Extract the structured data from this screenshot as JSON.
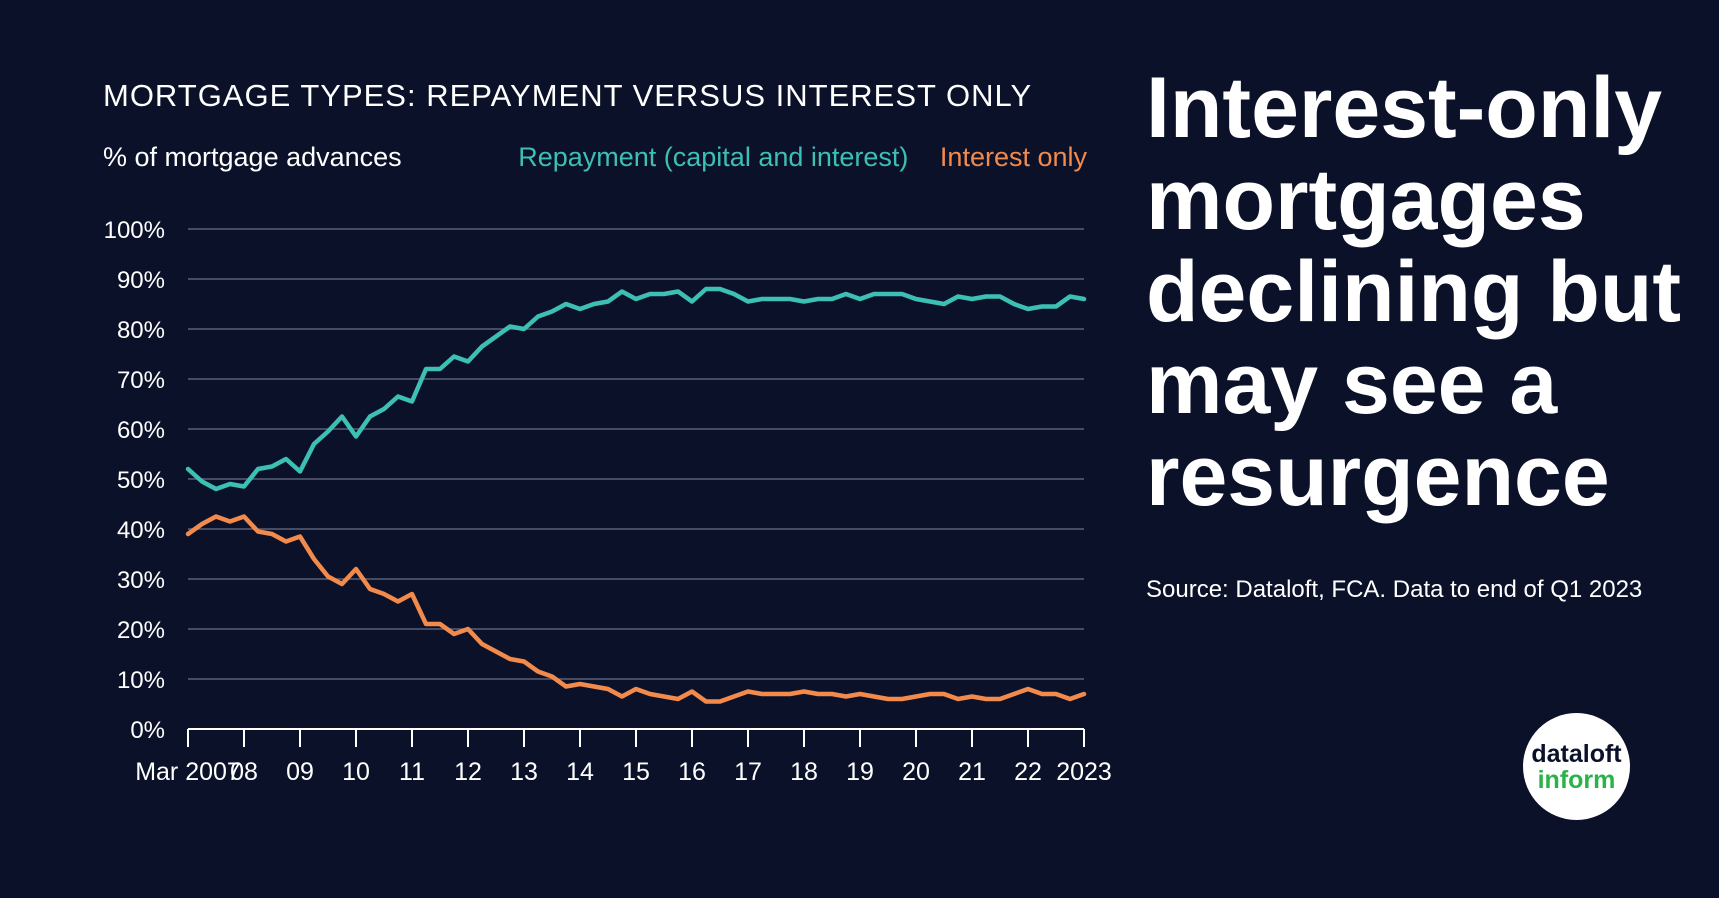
{
  "header": {
    "chart_title": "MORTGAGE TYPES: REPAYMENT VERSUS INTEREST ONLY",
    "ylabel": "% of mortgage advances",
    "legend_repayment": "Repayment (capital and interest)",
    "legend_interest": "Interest only"
  },
  "sidebar": {
    "headline": "Interest-only mortgages declining but may see a resurgence",
    "source": "Source: Dataloft, FCA. Data to end of Q1 2023"
  },
  "logo": {
    "line1": "dataloft",
    "line2": "inform"
  },
  "colors": {
    "background": "#0b1129",
    "repayment": "#3dbfb3",
    "interest_only": "#f28a4c",
    "grid": "#5a6178",
    "logo_green": "#2bb34a"
  },
  "chart_data": {
    "type": "line",
    "title": "MORTGAGE TYPES: REPAYMENT VERSUS INTEREST ONLY",
    "ylabel": "% of mortgage advances",
    "xlabel": "",
    "ylim": [
      0,
      100
    ],
    "y_ticks": [
      "0%",
      "10%",
      "20%",
      "30%",
      "40%",
      "50%",
      "60%",
      "70%",
      "80%",
      "90%",
      "100%"
    ],
    "x_range": [
      "2007 Q1",
      "2023 Q1"
    ],
    "x_ticks": [
      {
        "year": 2007,
        "label": "Mar 2007"
      },
      {
        "year": 2008,
        "label": "08"
      },
      {
        "year": 2009,
        "label": "09"
      },
      {
        "year": 2010,
        "label": "10"
      },
      {
        "year": 2011,
        "label": "11"
      },
      {
        "year": 2012,
        "label": "12"
      },
      {
        "year": 2013,
        "label": "13"
      },
      {
        "year": 2014,
        "label": "14"
      },
      {
        "year": 2015,
        "label": "15"
      },
      {
        "year": 2016,
        "label": "16"
      },
      {
        "year": 2017,
        "label": "17"
      },
      {
        "year": 2018,
        "label": "18"
      },
      {
        "year": 2019,
        "label": "19"
      },
      {
        "year": 2020,
        "label": "20"
      },
      {
        "year": 2021,
        "label": "21"
      },
      {
        "year": 2022,
        "label": "22"
      },
      {
        "year": 2023,
        "label": "2023"
      }
    ],
    "grid": true,
    "legend_position": "top-right",
    "series": [
      {
        "name": "Repayment (capital and interest)",
        "values": [
          52,
          49.5,
          48,
          49,
          48.5,
          52,
          52.5,
          54,
          51.5,
          57,
          59.5,
          62.5,
          58.5,
          62.5,
          64,
          66.5,
          65.5,
          72,
          72,
          74.5,
          73.5,
          76.5,
          78.5,
          80.5,
          80,
          82.5,
          83.5,
          85,
          84,
          85,
          85.5,
          87.5,
          86,
          87,
          87,
          87.5,
          85.5,
          88,
          88,
          87,
          85.5,
          86,
          86,
          86,
          85.5,
          86,
          86,
          87,
          86,
          87,
          87,
          87,
          86,
          85.5,
          85,
          86.5,
          86,
          86.5,
          86.5,
          85,
          84,
          84.5,
          84.5,
          86.5,
          86
        ]
      },
      {
        "name": "Interest only",
        "values": [
          39,
          41,
          42.5,
          41.5,
          42.5,
          39.5,
          39,
          37.5,
          38.5,
          34,
          30.5,
          29,
          32,
          28,
          27,
          25.5,
          27,
          21,
          21,
          19,
          20,
          17,
          15.5,
          14,
          13.5,
          11.5,
          10.5,
          8.5,
          9,
          8.5,
          8,
          6.5,
          8,
          7,
          6.5,
          6,
          7.5,
          5.5,
          5.5,
          6.5,
          7.5,
          7,
          7,
          7,
          7.5,
          7,
          7,
          6.5,
          7,
          6.5,
          6,
          6,
          6.5,
          7,
          7,
          6,
          6.5,
          6,
          6,
          7,
          8,
          7,
          7,
          6,
          7
        ]
      }
    ]
  }
}
